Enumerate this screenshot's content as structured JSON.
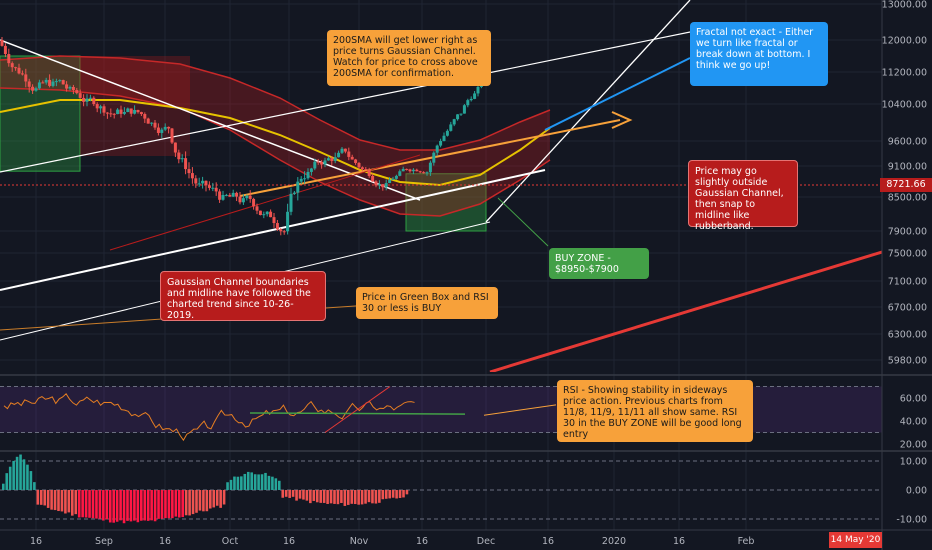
{
  "chart_data": [
    {
      "type": "candlestick",
      "panel": "price",
      "price_axis_ticks": [
        13000,
        12000,
        11200,
        10400,
        9600,
        9100,
        8500,
        7900,
        7500,
        7100,
        6700,
        6300,
        5980
      ],
      "time_axis_ticks": [
        "16",
        "Sep",
        "16",
        "Oct",
        "16",
        "Nov",
        "16",
        "Dec",
        "16",
        "2020",
        "16",
        "Feb"
      ],
      "current_price": "8721.66",
      "current_date": "14 May '20",
      "buy_zone": [
        7900,
        8950
      ]
    },
    {
      "type": "line",
      "panel": "rsi",
      "y_ticks": [
        60,
        40,
        20
      ],
      "y_tick_labels": [
        "60.00",
        "40.00",
        "20.00"
      ]
    },
    {
      "type": "bar",
      "panel": "oscillator",
      "y_ticks": [
        10,
        0,
        -10
      ],
      "y_tick_labels": [
        "10.00",
        "0.00",
        "-10.00"
      ]
    }
  ],
  "annotations": {
    "sma_note": "200SMA will get lower right as price turns Gaussian Channel. Watch for price to cross above 200SMA for confirmation.",
    "fractal_note": "Fractal not exact - Either we turn like fractal or break down at bottom. I think we go up!",
    "rubberband_note": "Price may go slightly outside Gaussian Channel, then snap to midline like rubberband.",
    "buy_zone_note": "BUY ZONE - $8950-$7900",
    "gaussian_note": "Gaussian Channel boundaries and midline have followed the charted trend since 10-26-2019.",
    "green_box_note": "Price in Green Box and RSI 30 or less is BUY",
    "rsi_note": "RSI - Showing stability in sideways price action.  Previous charts from 11/8, 11/9, 11/11 all show same. RSI 30 in the BUY ZONE will be good long entry"
  },
  "colors": {
    "background": "#131722",
    "up": "#26a69a",
    "down": "#ef5350",
    "accent_orange": "#f7a13a",
    "accent_red": "#b71c1c",
    "accent_blue": "#2196f3",
    "accent_green": "#43a047"
  }
}
